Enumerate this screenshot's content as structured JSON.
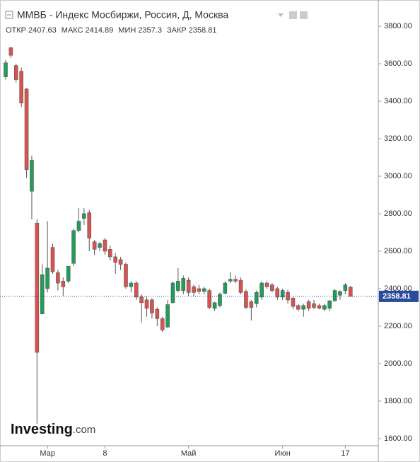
{
  "chart_data": {
    "type": "candlestick",
    "title": "ММВБ - Индекс Мосбиржи, Россия, Д, Москва",
    "ohlc_labels": [
      "ОТКР",
      "МАКС",
      "МИН",
      "ЗАКР"
    ],
    "watermark": [
      "Investing",
      ".com"
    ],
    "categories": [
      null,
      null,
      null,
      null,
      null,
      null,
      null,
      null,
      "Мар",
      null,
      null,
      null,
      null,
      null,
      null,
      null,
      null,
      null,
      null,
      "8",
      null,
      null,
      null,
      null,
      null,
      null,
      null,
      null,
      null,
      null,
      null,
      null,
      null,
      null,
      null,
      "Май",
      null,
      null,
      null,
      null,
      null,
      null,
      null,
      null,
      null,
      null,
      null,
      null,
      null,
      null,
      null,
      null,
      null,
      "Июн",
      null,
      null,
      null,
      null,
      null,
      null,
      null,
      null,
      null,
      null,
      null,
      "17",
      null
    ],
    "open": [
      3530,
      3685,
      3590,
      3560,
      3465,
      2920,
      2750,
      2265,
      2400,
      2620,
      2485,
      2440,
      2440,
      2535,
      2710,
      2775,
      2805,
      2650,
      2620,
      2660,
      2610,
      2570,
      2555,
      2530,
      2410,
      2430,
      2355,
      2340,
      2340,
      2290,
      2240,
      2195,
      2325,
      2390,
      2390,
      2445,
      2410,
      2400,
      2385,
      2390,
      2295,
      2310,
      2375,
      2440,
      2450,
      2445,
      2385,
      2330,
      2320,
      2355,
      2430,
      2420,
      2400,
      2355,
      2380,
      2350,
      2310,
      2290,
      2330,
      2320,
      2310,
      2290,
      2295,
      2335,
      2365,
      2390,
      2407.63
    ],
    "high": [
      3620,
      3690,
      3600,
      3580,
      3470,
      3110,
      2770,
      2530,
      2760,
      2640,
      2500,
      2460,
      2520,
      2720,
      2830,
      2830,
      2820,
      2660,
      2650,
      2670,
      2630,
      2590,
      2570,
      2540,
      2440,
      2440,
      2370,
      2360,
      2350,
      2300,
      2250,
      2340,
      2440,
      2510,
      2470,
      2460,
      2420,
      2420,
      2410,
      2400,
      2330,
      2380,
      2440,
      2490,
      2470,
      2460,
      2395,
      2340,
      2390,
      2440,
      2440,
      2430,
      2410,
      2400,
      2395,
      2360,
      2320,
      2320,
      2340,
      2340,
      2320,
      2320,
      2340,
      2400,
      2390,
      2430,
      2414.89
    ],
    "low": [
      3515,
      3630,
      3500,
      3370,
      2990,
      2770,
      1680,
      2265,
      2380,
      2480,
      2390,
      2360,
      2430,
      2520,
      2700,
      2740,
      2600,
      2580,
      2600,
      2580,
      2550,
      2480,
      2500,
      2400,
      2380,
      2340,
      2220,
      2250,
      2240,
      2200,
      2170,
      2190,
      2320,
      2380,
      2370,
      2360,
      2360,
      2370,
      2370,
      2290,
      2280,
      2300,
      2370,
      2430,
      2430,
      2370,
      2290,
      2230,
      2300,
      2340,
      2400,
      2380,
      2340,
      2340,
      2320,
      2290,
      2280,
      2250,
      2280,
      2290,
      2290,
      2280,
      2280,
      2330,
      2340,
      2370,
      2357.3
    ],
    "close": [
      3605,
      3645,
      3515,
      3390,
      3035,
      3085,
      2060,
      2475,
      2510,
      2490,
      2430,
      2410,
      2520,
      2710,
      2760,
      2800,
      2670,
      2610,
      2640,
      2600,
      2570,
      2540,
      2530,
      2410,
      2430,
      2355,
      2325,
      2295,
      2270,
      2240,
      2180,
      2315,
      2430,
      2440,
      2455,
      2380,
      2380,
      2385,
      2400,
      2300,
      2325,
      2370,
      2430,
      2450,
      2440,
      2380,
      2300,
      2300,
      2380,
      2430,
      2410,
      2390,
      2355,
      2390,
      2340,
      2305,
      2290,
      2310,
      2295,
      2300,
      2295,
      2310,
      2335,
      2390,
      2385,
      2420,
      2358.81
    ],
    "up_color": "#1f9e5a",
    "down_color": "#d9534f",
    "ylim": [
      1562,
      3940
    ],
    "yticks": [
      {
        "value": 1600,
        "label": "1600.00"
      },
      {
        "value": 1800,
        "label": "1800.00"
      },
      {
        "value": 2000,
        "label": "2000.00"
      },
      {
        "value": 2200,
        "label": "2200.00"
      },
      {
        "value": 2400,
        "label": "2400.00"
      },
      {
        "value": 2600,
        "label": "2600.00"
      },
      {
        "value": 2800,
        "label": "2800.00"
      },
      {
        "value": 3000,
        "label": "3000.00"
      },
      {
        "value": 3200,
        "label": "3200.00"
      },
      {
        "value": 3400,
        "label": "3400.00"
      },
      {
        "value": 3600,
        "label": "3600.00"
      },
      {
        "value": 3800,
        "label": "3800.00"
      }
    ]
  }
}
